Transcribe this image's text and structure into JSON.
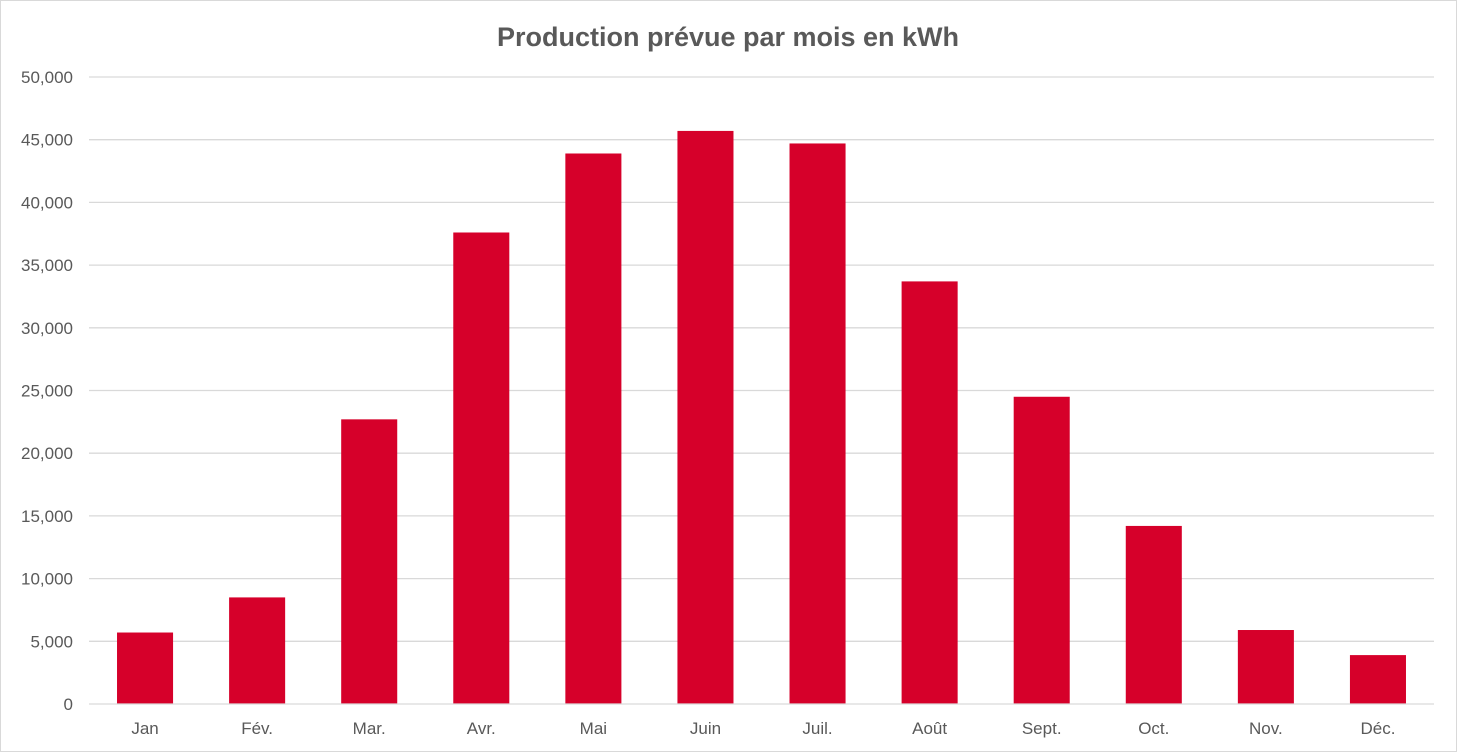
{
  "chart_data": {
    "type": "bar",
    "title": "Production prévue par mois en kWh",
    "xlabel": "",
    "ylabel": "",
    "categories": [
      "Jan",
      "Fév.",
      "Mar.",
      "Avr.",
      "Mai",
      "Juin",
      "Juil.",
      "Août",
      "Sept.",
      "Oct.",
      "Nov.",
      "Déc."
    ],
    "values": [
      5700,
      8500,
      22700,
      37600,
      43900,
      45700,
      44700,
      33700,
      24500,
      14200,
      5900,
      3900
    ],
    "ylim": [
      0,
      50000
    ],
    "yticks": [
      0,
      5000,
      10000,
      15000,
      20000,
      25000,
      30000,
      35000,
      40000,
      45000,
      50000
    ],
    "ytick_labels": [
      "0",
      "5,000",
      "10,000",
      "15,000",
      "20,000",
      "25,000",
      "30,000",
      "35,000",
      "40,000",
      "45,000",
      "50,000"
    ],
    "bar_color": "#d6002a",
    "grid": true,
    "legend": "none"
  }
}
